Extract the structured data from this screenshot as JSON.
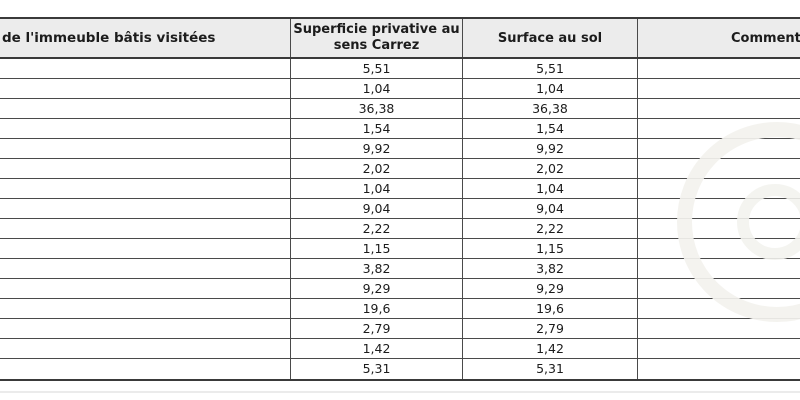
{
  "table": {
    "header": {
      "col_parties": "de l'immeuble bâtis visitées",
      "col_carrez_line1": "Superficie privative au",
      "col_carrez_line2": "sens Carrez",
      "col_surface": "Surface au sol",
      "col_comment": "Comment"
    },
    "rows": [
      {
        "carrez": "5,51",
        "sol": "5,51"
      },
      {
        "carrez": "1,04",
        "sol": "1,04"
      },
      {
        "carrez": "36,38",
        "sol": "36,38"
      },
      {
        "carrez": "1,54",
        "sol": "1,54"
      },
      {
        "carrez": "9,92",
        "sol": "9,92"
      },
      {
        "carrez": "2,02",
        "sol": "2,02"
      },
      {
        "carrez": "1,04",
        "sol": "1,04"
      },
      {
        "carrez": "9,04",
        "sol": "9,04"
      },
      {
        "carrez": "2,22",
        "sol": "2,22"
      },
      {
        "carrez": "1,15",
        "sol": "1,15"
      },
      {
        "carrez": "3,82",
        "sol": "3,82"
      },
      {
        "carrez": "9,29",
        "sol": "9,29"
      },
      {
        "carrez": "19,6",
        "sol": "19,6"
      },
      {
        "carrez": "2,79",
        "sol": "2,79"
      },
      {
        "carrez": "1,42",
        "sol": "1,42"
      },
      {
        "carrez": "5,31",
        "sol": "5,31"
      }
    ]
  },
  "colors": {
    "header_background": "#ececec",
    "grid_line": "#4a4a4a",
    "outer_border": "#3a3a3a",
    "text": "#1c1c1c",
    "watermark": "#f3f2ee"
  },
  "watermark": {
    "description": "faded circular logo overlapping table lines on right side"
  }
}
